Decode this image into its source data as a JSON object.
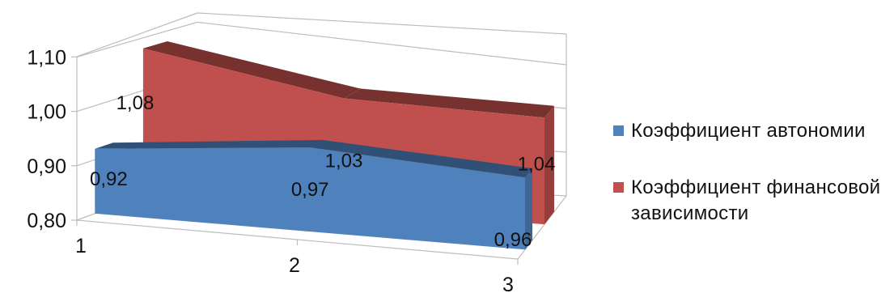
{
  "chart_data": {
    "type": "area",
    "title": "",
    "xlabel": "",
    "ylabel": "",
    "categories": [
      "1",
      "2",
      "3"
    ],
    "y_ticks": [
      "0,80",
      "0,90",
      "1,00",
      "1,10"
    ],
    "ylim": [
      0.8,
      1.1
    ],
    "three_d": true,
    "legend_position": "right",
    "series": [
      {
        "name": "Коэффициент автономии",
        "values": [
          0.92,
          0.97,
          0.96
        ],
        "labels": [
          "0,92",
          "0,97",
          "0,96"
        ],
        "color": "#4f81bd"
      },
      {
        "name": "Коэффициент финансовой зависимости",
        "values": [
          1.08,
          1.03,
          1.04
        ],
        "labels": [
          "1,08",
          "1,03",
          "1,04"
        ],
        "color": "#c0504d"
      }
    ]
  },
  "legend": {
    "items": [
      {
        "label": "Коэффициент автономии",
        "color": "#4f81bd"
      },
      {
        "label": "Коэффициент финансовой зависимости",
        "color": "#c0504d"
      }
    ]
  }
}
